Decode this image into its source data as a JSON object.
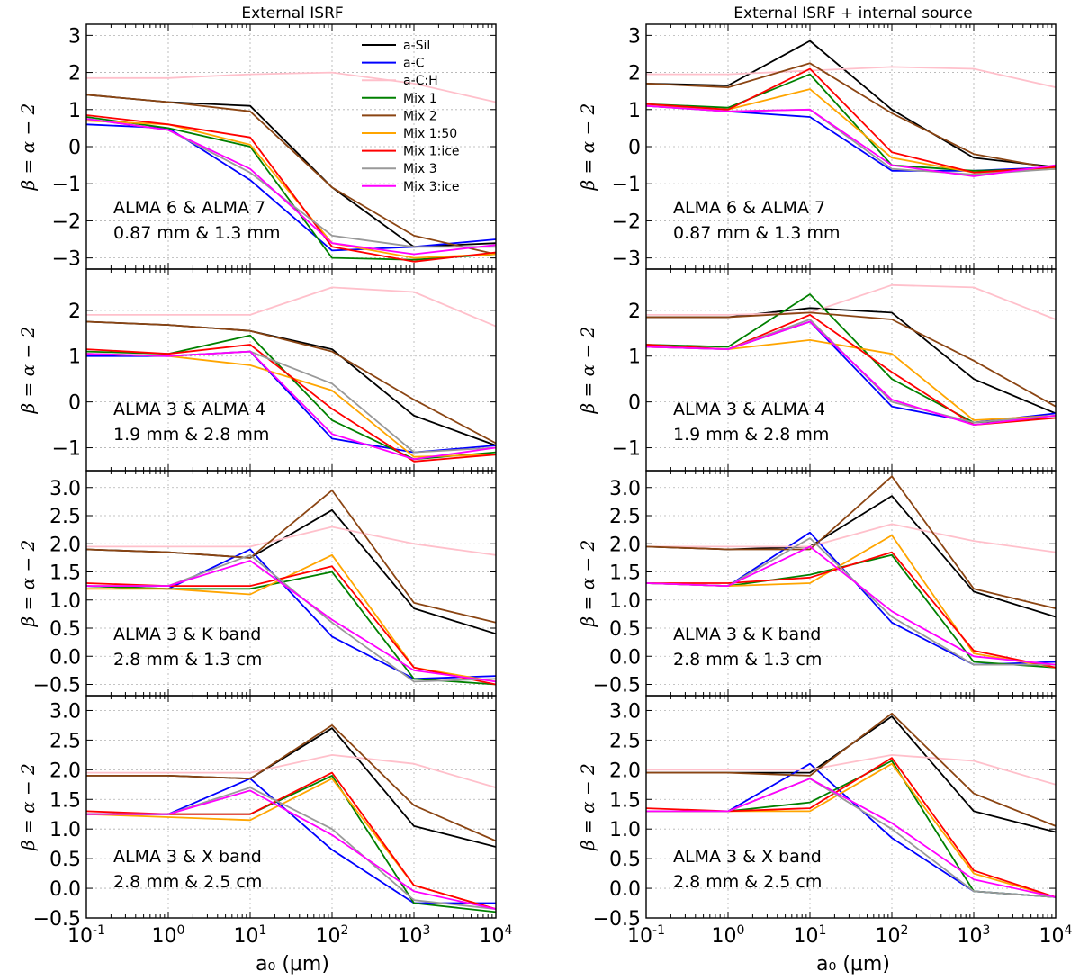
{
  "column_titles": [
    "External ISRF",
    "External ISRF + internal source"
  ],
  "x_axis": {
    "label": "a₀ (μm)",
    "x": [
      0.1,
      1,
      10,
      100,
      1000,
      10000
    ],
    "ticks": [
      {
        "base": "10",
        "exp": "-1"
      },
      {
        "base": "10",
        "exp": "0"
      },
      {
        "base": "10",
        "exp": "1"
      },
      {
        "base": "10",
        "exp": "2"
      },
      {
        "base": "10",
        "exp": "3"
      },
      {
        "base": "10",
        "exp": "4"
      }
    ]
  },
  "y_label": "β = α − 2",
  "legend": [
    {
      "name": "a-Sil",
      "color": "#000000"
    },
    {
      "name": "a-C",
      "color": "#0000ff"
    },
    {
      "name": "a-C:H",
      "color": "#ffc0cb"
    },
    {
      "name": "Mix 1",
      "color": "#008000"
    },
    {
      "name": "Mix 2",
      "color": "#8b4513"
    },
    {
      "name": "Mix 1:50",
      "color": "#ffa500"
    },
    {
      "name": "Mix 1:ice",
      "color": "#ff0000"
    },
    {
      "name": "Mix 3",
      "color": "#999999"
    },
    {
      "name": "Mix 3:ice",
      "color": "#ff00ff"
    }
  ],
  "chart_data": [
    {
      "type": "line",
      "title": "External ISRF",
      "xlabel": "",
      "ylabel": "β = α − 2",
      "xscale": "log",
      "grid": true,
      "ylim": [
        -3.3,
        3.3
      ],
      "yticks": [
        "-3",
        "-2",
        "-1",
        "0",
        "1",
        "2",
        "3"
      ],
      "annotation": [
        "ALMA 6 & ALMA 7",
        "0.87 mm & 1.3 mm"
      ],
      "legend_position": "top-right",
      "series": [
        {
          "name": "a-Sil",
          "values": [
            1.4,
            1.2,
            1.1,
            -1.1,
            -2.7,
            -2.6
          ]
        },
        {
          "name": "a-C",
          "values": [
            0.6,
            0.5,
            -0.9,
            -2.8,
            -2.7,
            -2.5
          ]
        },
        {
          "name": "a-C:H",
          "values": [
            1.85,
            1.85,
            1.95,
            2.0,
            1.7,
            1.2
          ]
        },
        {
          "name": "Mix 1",
          "values": [
            0.8,
            0.5,
            0.0,
            -3.0,
            -3.05,
            -2.9
          ]
        },
        {
          "name": "Mix 2",
          "values": [
            1.4,
            1.2,
            0.95,
            -1.1,
            -2.4,
            -2.9
          ]
        },
        {
          "name": "Mix 1:50",
          "values": [
            0.7,
            0.6,
            0.05,
            -2.6,
            -3.0,
            -2.9
          ]
        },
        {
          "name": "Mix 1:ice",
          "values": [
            0.85,
            0.6,
            0.25,
            -2.7,
            -3.1,
            -2.85
          ]
        },
        {
          "name": "Mix 3",
          "values": [
            0.75,
            0.45,
            -0.7,
            -2.4,
            -2.7,
            -2.7
          ]
        },
        {
          "name": "Mix 3:ice",
          "values": [
            0.75,
            0.45,
            -0.6,
            -2.6,
            -2.9,
            -2.65
          ]
        }
      ]
    },
    {
      "type": "line",
      "title": "External ISRF + internal source",
      "xlabel": "",
      "ylabel": "β = α − 2",
      "xscale": "log",
      "grid": true,
      "ylim": [
        -3.3,
        3.3
      ],
      "yticks": [
        "-3",
        "-2",
        "-1",
        "0",
        "1",
        "2",
        "3"
      ],
      "annotation": [
        "ALMA 6 & ALMA 7",
        "0.87 mm & 1.3 mm"
      ],
      "series": [
        {
          "name": "a-Sil",
          "values": [
            1.7,
            1.65,
            2.85,
            1.0,
            -0.3,
            -0.55
          ]
        },
        {
          "name": "a-C",
          "values": [
            1.1,
            0.95,
            0.8,
            -0.65,
            -0.65,
            -0.55
          ]
        },
        {
          "name": "a-C:H",
          "values": [
            1.95,
            1.95,
            2.05,
            2.15,
            2.1,
            1.6
          ]
        },
        {
          "name": "Mix 1",
          "values": [
            1.15,
            1.05,
            1.95,
            -0.5,
            -0.65,
            -0.6
          ]
        },
        {
          "name": "Mix 2",
          "values": [
            1.7,
            1.6,
            2.25,
            0.9,
            -0.2,
            -0.6
          ]
        },
        {
          "name": "Mix 1:50",
          "values": [
            1.1,
            1.0,
            1.55,
            -0.3,
            -0.7,
            -0.6
          ]
        },
        {
          "name": "Mix 1:ice",
          "values": [
            1.15,
            1.0,
            2.1,
            -0.15,
            -0.7,
            -0.55
          ]
        },
        {
          "name": "Mix 3",
          "values": [
            1.1,
            0.95,
            1.0,
            -0.6,
            -0.75,
            -0.6
          ]
        },
        {
          "name": "Mix 3:ice",
          "values": [
            1.1,
            0.95,
            1.0,
            -0.5,
            -0.8,
            -0.5
          ]
        }
      ]
    },
    {
      "type": "line",
      "title": "",
      "xlabel": "",
      "ylabel": "β = α − 2",
      "xscale": "log",
      "grid": true,
      "ylim": [
        -1.5,
        2.9
      ],
      "yticks": [
        "-1",
        "0",
        "1",
        "2"
      ],
      "annotation": [
        "ALMA 3 & ALMA 4",
        "1.9 mm & 2.8 mm"
      ],
      "series": [
        {
          "name": "a-Sil",
          "values": [
            1.75,
            1.68,
            1.55,
            1.15,
            -0.3,
            -0.95
          ]
        },
        {
          "name": "a-C",
          "values": [
            1.0,
            1.0,
            1.1,
            -0.8,
            -1.1,
            -0.95
          ]
        },
        {
          "name": "a-C:H",
          "values": [
            1.9,
            1.9,
            1.9,
            2.5,
            2.4,
            1.65
          ]
        },
        {
          "name": "Mix 1",
          "values": [
            1.1,
            1.05,
            1.45,
            -0.4,
            -1.25,
            -1.1
          ]
        },
        {
          "name": "Mix 2",
          "values": [
            1.75,
            1.68,
            1.55,
            1.1,
            0.05,
            -0.9
          ]
        },
        {
          "name": "Mix 1:50",
          "values": [
            1.05,
            1.0,
            0.8,
            0.25,
            -1.2,
            -1.15
          ]
        },
        {
          "name": "Mix 1:ice",
          "values": [
            1.15,
            1.05,
            1.25,
            -0.15,
            -1.3,
            -1.15
          ]
        },
        {
          "name": "Mix 3",
          "values": [
            1.05,
            1.0,
            1.1,
            0.4,
            -1.1,
            -1.0
          ]
        },
        {
          "name": "Mix 3:ice",
          "values": [
            1.05,
            1.0,
            1.1,
            -0.7,
            -1.25,
            -1.0
          ]
        }
      ]
    },
    {
      "type": "line",
      "title": "",
      "xlabel": "",
      "ylabel": "β = α − 2",
      "xscale": "log",
      "grid": true,
      "ylim": [
        -1.5,
        2.9
      ],
      "yticks": [
        "-1",
        "0",
        "1",
        "2"
      ],
      "annotation": [
        "ALMA 3 & ALMA 4",
        "1.9 mm & 2.8 mm"
      ],
      "series": [
        {
          "name": "a-Sil",
          "values": [
            1.85,
            1.85,
            2.05,
            1.95,
            0.5,
            -0.25
          ]
        },
        {
          "name": "a-C",
          "values": [
            1.2,
            1.15,
            1.75,
            -0.1,
            -0.45,
            -0.25
          ]
        },
        {
          "name": "a-C:H",
          "values": [
            1.9,
            1.9,
            1.95,
            2.55,
            2.5,
            1.8
          ]
        },
        {
          "name": "Mix 1",
          "values": [
            1.25,
            1.2,
            2.35,
            0.5,
            -0.45,
            -0.35
          ]
        },
        {
          "name": "Mix 2",
          "values": [
            1.85,
            1.85,
            1.95,
            1.8,
            0.9,
            -0.1
          ]
        },
        {
          "name": "Mix 1:50",
          "values": [
            1.2,
            1.15,
            1.35,
            1.05,
            -0.4,
            -0.3
          ]
        },
        {
          "name": "Mix 1:ice",
          "values": [
            1.25,
            1.15,
            1.9,
            0.65,
            -0.5,
            -0.35
          ]
        },
        {
          "name": "Mix 3",
          "values": [
            1.2,
            1.15,
            1.8,
            0.0,
            -0.45,
            -0.3
          ]
        },
        {
          "name": "Mix 3:ice",
          "values": [
            1.2,
            1.15,
            1.75,
            0.05,
            -0.5,
            -0.3
          ]
        }
      ]
    },
    {
      "type": "line",
      "title": "",
      "xlabel": "",
      "ylabel": "β = α − 2",
      "xscale": "log",
      "grid": true,
      "ylim": [
        -0.7,
        3.3
      ],
      "yticks": [
        "-0.5",
        "0.0",
        "0.5",
        "1.0",
        "1.5",
        "2.0",
        "2.5",
        "3.0"
      ],
      "annotation": [
        "ALMA 3 & K band",
        "2.8 mm & 1.3 cm"
      ],
      "series": [
        {
          "name": "a-Sil",
          "values": [
            1.9,
            1.85,
            1.75,
            2.6,
            0.85,
            0.4
          ]
        },
        {
          "name": "a-C",
          "values": [
            1.25,
            1.2,
            1.9,
            0.35,
            -0.4,
            -0.35
          ]
        },
        {
          "name": "a-C:H",
          "values": [
            1.95,
            1.95,
            1.95,
            2.3,
            2.0,
            1.8
          ]
        },
        {
          "name": "Mix 1",
          "values": [
            1.25,
            1.2,
            1.2,
            1.5,
            -0.4,
            -0.5
          ]
        },
        {
          "name": "Mix 2",
          "values": [
            1.9,
            1.85,
            1.75,
            2.95,
            0.95,
            0.6
          ]
        },
        {
          "name": "Mix 1:50",
          "values": [
            1.2,
            1.2,
            1.1,
            1.8,
            -0.2,
            -0.45
          ]
        },
        {
          "name": "Mix 1:ice",
          "values": [
            1.3,
            1.25,
            1.25,
            1.6,
            -0.2,
            -0.5
          ]
        },
        {
          "name": "Mix 3",
          "values": [
            1.25,
            1.25,
            1.8,
            0.6,
            -0.45,
            -0.4
          ]
        },
        {
          "name": "Mix 3:ice",
          "values": [
            1.25,
            1.25,
            1.7,
            0.65,
            -0.25,
            -0.45
          ]
        }
      ]
    },
    {
      "type": "line",
      "title": "",
      "xlabel": "",
      "ylabel": "β = α − 2",
      "xscale": "log",
      "grid": true,
      "ylim": [
        -0.7,
        3.3
      ],
      "yticks": [
        "-0.5",
        "0.0",
        "0.5",
        "1.0",
        "1.5",
        "2.0",
        "2.5",
        "3.0"
      ],
      "annotation": [
        "ALMA 3 & K band",
        "2.8 mm & 1.3 cm"
      ],
      "series": [
        {
          "name": "a-Sil",
          "values": [
            1.95,
            1.9,
            1.95,
            2.85,
            1.15,
            0.7
          ]
        },
        {
          "name": "a-C",
          "values": [
            1.3,
            1.25,
            2.2,
            0.6,
            -0.15,
            -0.1
          ]
        },
        {
          "name": "a-C:H",
          "values": [
            1.95,
            1.95,
            1.95,
            2.35,
            2.05,
            1.85
          ]
        },
        {
          "name": "Mix 1",
          "values": [
            1.3,
            1.25,
            1.45,
            1.8,
            -0.1,
            -0.2
          ]
        },
        {
          "name": "Mix 2",
          "values": [
            1.95,
            1.9,
            1.9,
            3.2,
            1.2,
            0.85
          ]
        },
        {
          "name": "Mix 1:50",
          "values": [
            1.3,
            1.25,
            1.3,
            2.15,
            0.05,
            -0.2
          ]
        },
        {
          "name": "Mix 1:ice",
          "values": [
            1.3,
            1.3,
            1.4,
            1.85,
            0.1,
            -0.2
          ]
        },
        {
          "name": "Mix 3",
          "values": [
            1.3,
            1.25,
            2.1,
            0.7,
            -0.15,
            -0.15
          ]
        },
        {
          "name": "Mix 3:ice",
          "values": [
            1.3,
            1.25,
            1.95,
            0.8,
            0.0,
            -0.15
          ]
        }
      ]
    },
    {
      "type": "line",
      "title": "",
      "xlabel": "a₀ (μm)",
      "ylabel": "β = α − 2",
      "xscale": "log",
      "grid": true,
      "ylim": [
        -0.5,
        3.25
      ],
      "yticks": [
        "-0.5",
        "0.0",
        "0.5",
        "1.0",
        "1.5",
        "2.0",
        "2.5",
        "3.0"
      ],
      "annotation": [
        "ALMA 3 & X band",
        "2.8 mm & 2.5 cm"
      ],
      "series": [
        {
          "name": "a-Sil",
          "values": [
            1.9,
            1.9,
            1.85,
            2.7,
            1.05,
            0.7
          ]
        },
        {
          "name": "a-C",
          "values": [
            1.25,
            1.25,
            1.85,
            0.65,
            -0.25,
            -0.25
          ]
        },
        {
          "name": "a-C:H",
          "values": [
            1.95,
            1.95,
            1.95,
            2.25,
            2.1,
            1.7
          ]
        },
        {
          "name": "Mix 1",
          "values": [
            1.25,
            1.25,
            1.25,
            1.9,
            -0.25,
            -0.4
          ]
        },
        {
          "name": "Mix 2",
          "values": [
            1.9,
            1.9,
            1.85,
            2.75,
            1.4,
            0.8
          ]
        },
        {
          "name": "Mix 1:50",
          "values": [
            1.25,
            1.2,
            1.15,
            1.85,
            0.05,
            -0.35
          ]
        },
        {
          "name": "Mix 1:ice",
          "values": [
            1.3,
            1.25,
            1.25,
            1.95,
            0.05,
            -0.35
          ]
        },
        {
          "name": "Mix 3",
          "values": [
            1.25,
            1.25,
            1.7,
            1.0,
            -0.2,
            -0.35
          ]
        },
        {
          "name": "Mix 3:ice",
          "values": [
            1.25,
            1.25,
            1.65,
            0.9,
            -0.05,
            -0.35
          ]
        }
      ]
    },
    {
      "type": "line",
      "title": "",
      "xlabel": "a₀ (μm)",
      "ylabel": "β = α − 2",
      "xscale": "log",
      "grid": true,
      "ylim": [
        -0.5,
        3.25
      ],
      "yticks": [
        "-0.5",
        "0.0",
        "0.5",
        "1.0",
        "1.5",
        "2.0",
        "2.5",
        "3.0"
      ],
      "annotation": [
        "ALMA 3 & X band",
        "2.8 mm & 2.5 cm"
      ],
      "series": [
        {
          "name": "a-Sil",
          "values": [
            1.95,
            1.95,
            1.95,
            2.9,
            1.3,
            0.95
          ]
        },
        {
          "name": "a-C",
          "values": [
            1.3,
            1.3,
            2.1,
            0.85,
            -0.05,
            -0.15
          ]
        },
        {
          "name": "a-C:H",
          "values": [
            2.0,
            2.0,
            2.0,
            2.25,
            2.15,
            1.75
          ]
        },
        {
          "name": "Mix 1",
          "values": [
            1.3,
            1.3,
            1.45,
            2.15,
            -0.05,
            -0.15
          ]
        },
        {
          "name": "Mix 2",
          "values": [
            1.95,
            1.95,
            1.9,
            2.95,
            1.6,
            1.05
          ]
        },
        {
          "name": "Mix 1:50",
          "values": [
            1.3,
            1.3,
            1.3,
            2.1,
            0.25,
            -0.15
          ]
        },
        {
          "name": "Mix 1:ice",
          "values": [
            1.35,
            1.3,
            1.35,
            2.2,
            0.3,
            -0.15
          ]
        },
        {
          "name": "Mix 3",
          "values": [
            1.3,
            1.3,
            1.85,
            1.0,
            -0.05,
            -0.15
          ]
        },
        {
          "name": "Mix 3:ice",
          "values": [
            1.3,
            1.3,
            1.85,
            1.1,
            0.15,
            -0.15
          ]
        }
      ]
    }
  ]
}
